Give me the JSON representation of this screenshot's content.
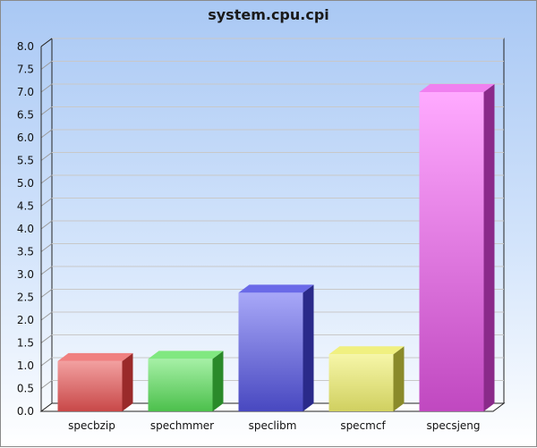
{
  "chart_data": {
    "type": "bar",
    "title": "system.cpu.cpi",
    "categories": [
      "specbzip",
      "spechmmer",
      "speclibm",
      "specmcf",
      "specsjeng"
    ],
    "values": [
      1.1,
      1.15,
      2.6,
      1.25,
      7.0
    ],
    "ylim": [
      0,
      8
    ],
    "yticks": [
      "0.0",
      "0.5",
      "1.0",
      "1.5",
      "2.0",
      "2.5",
      "3.0",
      "3.5",
      "4.0",
      "4.5",
      "5.0",
      "5.5",
      "6.0",
      "6.5",
      "7.0",
      "7.5",
      "8.0"
    ],
    "grid": true,
    "colors": [
      {
        "top": "#f08080",
        "front_light": "#f2a0a0",
        "front_dark": "#c84848",
        "side": "#9a2a2a"
      },
      {
        "top": "#80e880",
        "front_light": "#a6f0a6",
        "front_dark": "#4cc04c",
        "side": "#2a8a2a"
      },
      {
        "top": "#6a6ae8",
        "front_light": "#a8a8f8",
        "front_dark": "#4848c0",
        "side": "#2a2a8a"
      },
      {
        "top": "#f0f080",
        "front_light": "#f6f6a8",
        "front_dark": "#d0d060",
        "side": "#8a8a2a"
      },
      {
        "top": "#f080f0",
        "front_light": "#ffaaff",
        "front_dark": "#c048c0",
        "side": "#8a2a8a"
      }
    ]
  }
}
